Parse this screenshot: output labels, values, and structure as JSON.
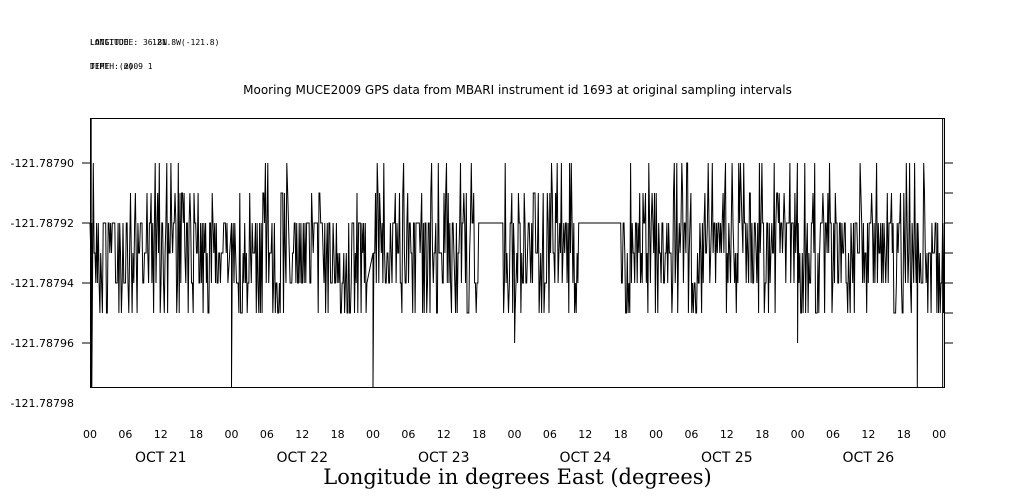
{
  "header": {
    "line1_a": "LONGITUDE",
    "line1_b": "LATITUDE : 36.8N",
    "line1_c": "121.8W(-121.8)",
    "line2_a": "DEPTH (m)",
    "line2_b": "TIME : 2009 1"
  },
  "chart_data": {
    "type": "line",
    "title": "Mooring MUCE2009 GPS data from MBARI instrument id 1693 at original sampling intervals",
    "xlabel": "Longitude in degrees East (degrees)",
    "ylabel": "",
    "ylim": [
      -121.787975,
      -121.787885
    ],
    "y_tick_labels": [
      "-121.78790",
      "-121.78792",
      "-121.78794",
      "-121.78796",
      "-121.78798"
    ],
    "y_tick_values": [
      -121.7879,
      -121.78792,
      -121.78794,
      -121.78796,
      -121.78798
    ],
    "x_range_hours": [
      0,
      145
    ],
    "x_tick_labels": [
      "00",
      "06",
      "12",
      "18",
      "00",
      "06",
      "12",
      "18",
      "00",
      "06",
      "12",
      "18",
      "00",
      "06",
      "12",
      "18",
      "00",
      "06",
      "12",
      "18",
      "00",
      "06",
      "12",
      "18",
      "00"
    ],
    "day_labels": [
      "OCT 21",
      "OCT 22",
      "OCT 23",
      "OCT 24",
      "OCT 25",
      "OCT 26"
    ],
    "levels": [
      -121.7879,
      -121.78791,
      -121.78792,
      -121.78793,
      -121.78794,
      -121.78795,
      -121.78796,
      -121.787975
    ],
    "segments": [
      {
        "start": 0.0,
        "end": 23.5
      },
      {
        "start": 24.0,
        "end": 47.0
      },
      {
        "start": 48.0,
        "end": 66.0
      },
      {
        "start": 70.0,
        "end": 83.0
      },
      {
        "start": 90.0,
        "end": 145.0
      }
    ],
    "dips": [
      {
        "x": 0.3,
        "y": -121.787975
      },
      {
        "x": 24.0,
        "y": -121.787975
      },
      {
        "x": 48.0,
        "y": -121.787975
      },
      {
        "x": 72.0,
        "y": -121.78796
      },
      {
        "x": 120.0,
        "y": -121.78796
      },
      {
        "x": 140.3,
        "y": -121.787975
      }
    ],
    "grid": false
  }
}
